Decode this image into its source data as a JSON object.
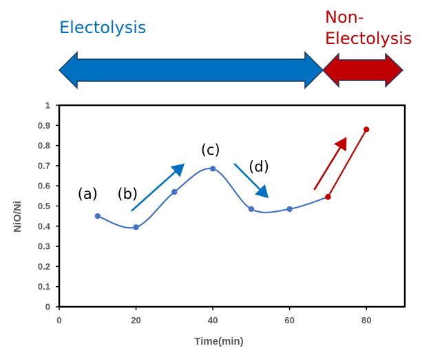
{
  "colors": {
    "electrolysis": "#0070C0",
    "non_electrolysis": "#C00000",
    "line_blue": "#4472C4",
    "arrow_outline": "#1F3864",
    "axis_text": "#595959"
  },
  "banner": {
    "electrolysis_label": "Electolysis",
    "non_electrolysis_line1": "Non-",
    "non_electrolysis_line2": "Electolysis",
    "boundary_x": 70
  },
  "chart_data": {
    "type": "line",
    "xlabel": "Time(min)",
    "ylabel": "NiO/Ni",
    "xlim": [
      0,
      90
    ],
    "ylim": [
      0,
      1
    ],
    "x_ticks": [
      0,
      20,
      40,
      60,
      80
    ],
    "y_ticks": [
      0,
      0.1,
      0.2,
      0.3,
      0.4,
      0.5,
      0.6,
      0.7,
      0.8,
      0.9,
      1
    ],
    "grid": false,
    "series": [
      {
        "color": "#4472C4",
        "points": [
          {
            "x": 10,
            "y": 0.45,
            "marker_color": "#4472C4"
          },
          {
            "x": 20,
            "y": 0.395,
            "marker_color": "#4472C4"
          },
          {
            "x": 30,
            "y": 0.57,
            "marker_color": "#4472C4"
          },
          {
            "x": 40,
            "y": 0.685,
            "marker_color": "#4472C4"
          },
          {
            "x": 50,
            "y": 0.485,
            "marker_color": "#4472C4"
          },
          {
            "x": 60,
            "y": 0.485,
            "marker_color": "#4472C4"
          },
          {
            "x": 70,
            "y": 0.545,
            "marker_color": "#C00000"
          }
        ]
      },
      {
        "color": "#C00000",
        "points": [
          {
            "x": 70,
            "y": 0.545,
            "marker_color": "#C00000"
          },
          {
            "x": 80,
            "y": 0.88,
            "marker_color": "#C00000"
          }
        ]
      }
    ],
    "annotations": [
      {
        "label": "(a)",
        "x": 7.4,
        "y": 0.535
      },
      {
        "label": "(b)",
        "x": 17.8,
        "y": 0.535
      },
      {
        "label": "(c)",
        "x": 39.4,
        "y": 0.755
      },
      {
        "label": "(d)",
        "x": 52.0,
        "y": 0.67
      }
    ],
    "trend_arrows": [
      {
        "direction": "up",
        "color": "#0070C0",
        "from": [
          18.8,
          0.475
        ],
        "to": [
          32.3,
          0.705
        ]
      },
      {
        "direction": "down",
        "color": "#0070C0",
        "from": [
          45.6,
          0.71
        ],
        "to": [
          54.2,
          0.545
        ]
      },
      {
        "direction": "up",
        "color": "#C00000",
        "from": [
          66.4,
          0.58
        ],
        "to": [
          74.6,
          0.835
        ]
      }
    ]
  }
}
